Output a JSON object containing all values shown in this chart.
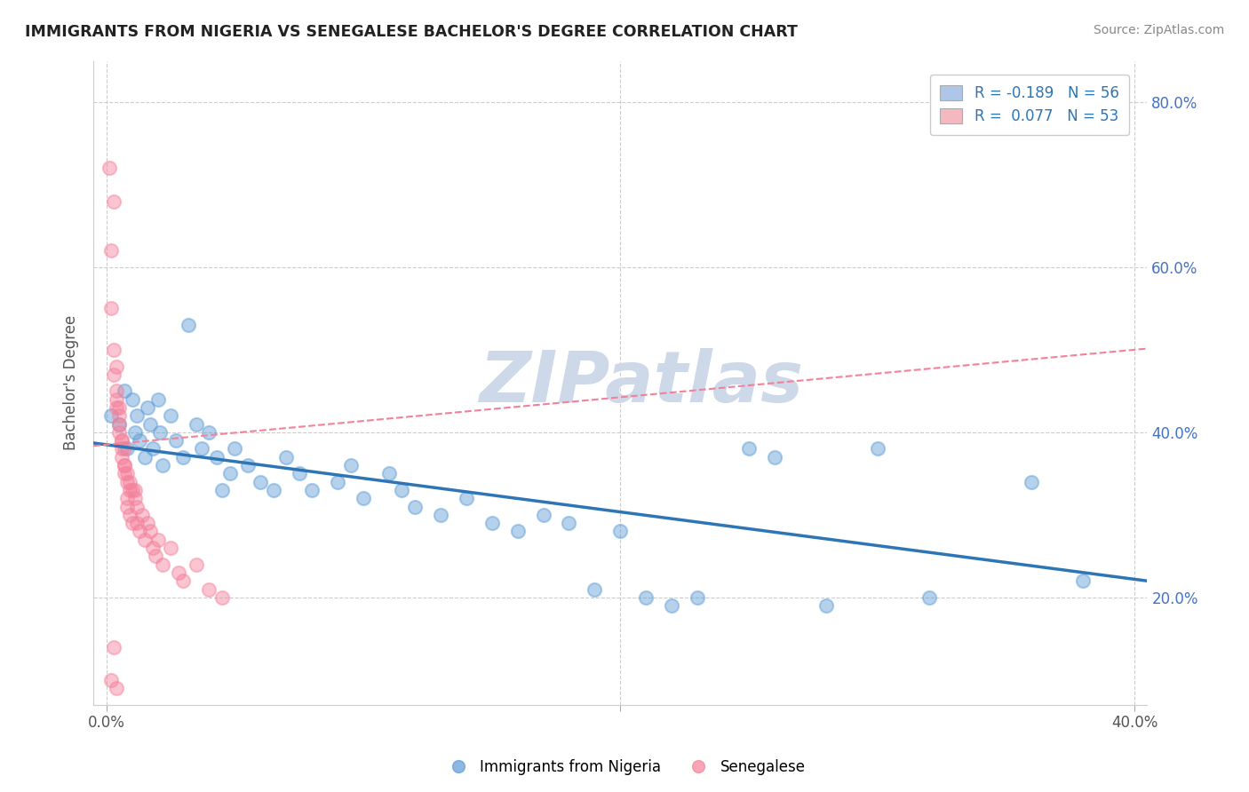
{
  "title": "IMMIGRANTS FROM NIGERIA VS SENEGALESE BACHELOR'S DEGREE CORRELATION CHART",
  "source": "Source: ZipAtlas.com",
  "ylabel": "Bachelor's Degree",
  "legend": [
    {
      "label": "R = -0.189   N = 56",
      "color": "#aec6e8"
    },
    {
      "label": "R =  0.077   N = 53",
      "color": "#f4b8c1"
    }
  ],
  "blue_color": "#5b9bd5",
  "pink_color": "#f4809a",
  "blue_line_color": "#2e75b6",
  "pink_line_color": "#f4809a",
  "background_color": "#ffffff",
  "grid_color": "#cccccc",
  "nigeria_points": [
    [
      0.002,
      0.42
    ],
    [
      0.005,
      0.41
    ],
    [
      0.007,
      0.45
    ],
    [
      0.008,
      0.38
    ],
    [
      0.01,
      0.44
    ],
    [
      0.011,
      0.4
    ],
    [
      0.012,
      0.42
    ],
    [
      0.013,
      0.39
    ],
    [
      0.015,
      0.37
    ],
    [
      0.016,
      0.43
    ],
    [
      0.017,
      0.41
    ],
    [
      0.018,
      0.38
    ],
    [
      0.02,
      0.44
    ],
    [
      0.021,
      0.4
    ],
    [
      0.022,
      0.36
    ],
    [
      0.025,
      0.42
    ],
    [
      0.027,
      0.39
    ],
    [
      0.03,
      0.37
    ],
    [
      0.032,
      0.53
    ],
    [
      0.035,
      0.41
    ],
    [
      0.037,
      0.38
    ],
    [
      0.04,
      0.4
    ],
    [
      0.043,
      0.37
    ],
    [
      0.045,
      0.33
    ],
    [
      0.048,
      0.35
    ],
    [
      0.05,
      0.38
    ],
    [
      0.055,
      0.36
    ],
    [
      0.06,
      0.34
    ],
    [
      0.065,
      0.33
    ],
    [
      0.07,
      0.37
    ],
    [
      0.075,
      0.35
    ],
    [
      0.08,
      0.33
    ],
    [
      0.09,
      0.34
    ],
    [
      0.095,
      0.36
    ],
    [
      0.1,
      0.32
    ],
    [
      0.11,
      0.35
    ],
    [
      0.115,
      0.33
    ],
    [
      0.12,
      0.31
    ],
    [
      0.13,
      0.3
    ],
    [
      0.14,
      0.32
    ],
    [
      0.15,
      0.29
    ],
    [
      0.16,
      0.28
    ],
    [
      0.17,
      0.3
    ],
    [
      0.18,
      0.29
    ],
    [
      0.19,
      0.21
    ],
    [
      0.2,
      0.28
    ],
    [
      0.21,
      0.2
    ],
    [
      0.22,
      0.19
    ],
    [
      0.23,
      0.2
    ],
    [
      0.25,
      0.38
    ],
    [
      0.26,
      0.37
    ],
    [
      0.28,
      0.19
    ],
    [
      0.3,
      0.38
    ],
    [
      0.32,
      0.2
    ],
    [
      0.36,
      0.34
    ],
    [
      0.38,
      0.22
    ]
  ],
  "senegal_points": [
    [
      0.001,
      0.72
    ],
    [
      0.003,
      0.68
    ],
    [
      0.002,
      0.62
    ],
    [
      0.002,
      0.55
    ],
    [
      0.003,
      0.5
    ],
    [
      0.003,
      0.47
    ],
    [
      0.004,
      0.45
    ],
    [
      0.004,
      0.48
    ],
    [
      0.004,
      0.43
    ],
    [
      0.004,
      0.44
    ],
    [
      0.005,
      0.42
    ],
    [
      0.005,
      0.41
    ],
    [
      0.005,
      0.43
    ],
    [
      0.005,
      0.4
    ],
    [
      0.006,
      0.39
    ],
    [
      0.006,
      0.38
    ],
    [
      0.006,
      0.37
    ],
    [
      0.006,
      0.39
    ],
    [
      0.007,
      0.36
    ],
    [
      0.007,
      0.35
    ],
    [
      0.007,
      0.38
    ],
    [
      0.007,
      0.36
    ],
    [
      0.008,
      0.34
    ],
    [
      0.008,
      0.32
    ],
    [
      0.008,
      0.35
    ],
    [
      0.008,
      0.31
    ],
    [
      0.009,
      0.33
    ],
    [
      0.009,
      0.3
    ],
    [
      0.009,
      0.34
    ],
    [
      0.01,
      0.33
    ],
    [
      0.01,
      0.29
    ],
    [
      0.011,
      0.33
    ],
    [
      0.011,
      0.32
    ],
    [
      0.012,
      0.29
    ],
    [
      0.012,
      0.31
    ],
    [
      0.013,
      0.28
    ],
    [
      0.014,
      0.3
    ],
    [
      0.015,
      0.27
    ],
    [
      0.016,
      0.29
    ],
    [
      0.017,
      0.28
    ],
    [
      0.018,
      0.26
    ],
    [
      0.019,
      0.25
    ],
    [
      0.02,
      0.27
    ],
    [
      0.022,
      0.24
    ],
    [
      0.025,
      0.26
    ],
    [
      0.028,
      0.23
    ],
    [
      0.03,
      0.22
    ],
    [
      0.035,
      0.24
    ],
    [
      0.04,
      0.21
    ],
    [
      0.045,
      0.2
    ],
    [
      0.003,
      0.14
    ],
    [
      0.002,
      0.1
    ],
    [
      0.004,
      0.09
    ]
  ],
  "x_min": -0.005,
  "x_max": 0.405,
  "y_min": 0.07,
  "y_max": 0.85,
  "yticks": [
    0.2,
    0.4,
    0.6,
    0.8
  ],
  "ytick_labels": [
    "20.0%",
    "40.0%",
    "60.0%",
    "80.0%"
  ],
  "xticks": [
    0.0,
    0.2,
    0.4
  ],
  "xtick_labels": [
    "0.0%",
    "",
    "40.0%"
  ],
  "blue_line_x0": 0.0,
  "blue_line_y0": 0.385,
  "blue_line_x1": 0.4,
  "blue_line_y1": 0.222,
  "pink_line_x0": 0.0,
  "pink_line_y0": 0.385,
  "pink_line_x1": 0.4,
  "pink_line_y1": 0.5,
  "watermark": "ZIPatlas",
  "watermark_color": "#cdd8e8",
  "watermark_fontsize": 58
}
